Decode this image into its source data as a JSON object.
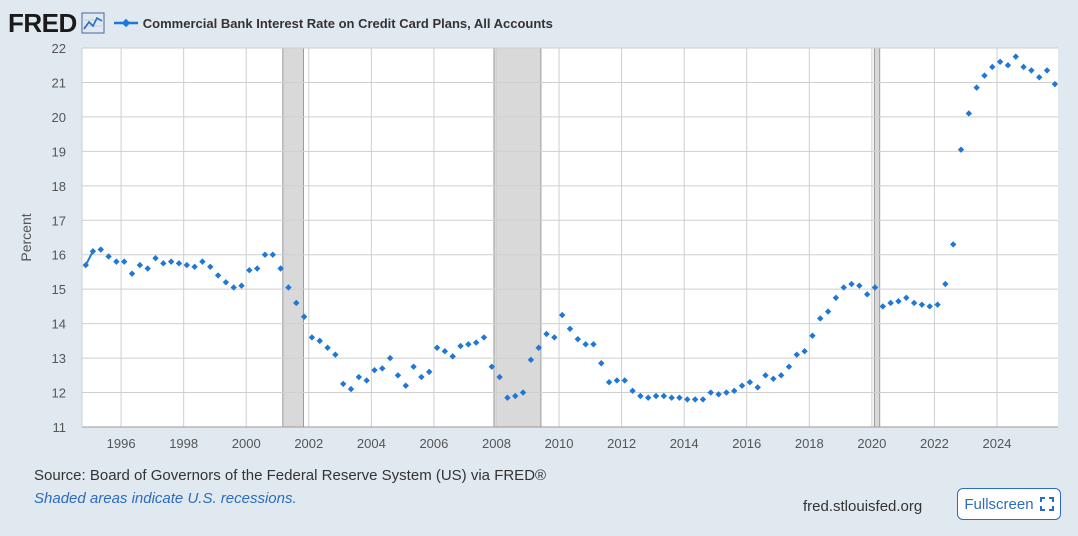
{
  "header": {
    "logo_text": "FRED",
    "series_title": "Commercial Bank Interest Rate on Credit Card Plans, All Accounts"
  },
  "footer": {
    "source": "Source: Board of Governors of the Federal Reserve System (US) via FRED®",
    "recession_note": "Shaded areas indicate U.S. recessions.",
    "site": "fred.stlouisfed.org",
    "fullscreen_label": "Fullscreen"
  },
  "colors": {
    "series": "#1f77d6",
    "recession": "#d9d9d9",
    "grid": "#cfcfcf",
    "accent": "#2b6cc0"
  },
  "chart_data": {
    "type": "scatter",
    "title": "Commercial Bank Interest Rate on Credit Card Plans, All Accounts",
    "xlabel": "",
    "ylabel": "Percent",
    "xlim": [
      1994.75,
      2025.95
    ],
    "ylim": [
      11,
      22
    ],
    "x_ticks": [
      1996,
      1998,
      2000,
      2002,
      2004,
      2006,
      2008,
      2010,
      2012,
      2014,
      2016,
      2018,
      2020,
      2022,
      2024
    ],
    "y_ticks": [
      11,
      12,
      13,
      14,
      15,
      16,
      17,
      18,
      19,
      20,
      21,
      22
    ],
    "grid": true,
    "recessions": [
      [
        2001.17,
        2001.83
      ],
      [
        2007.92,
        2009.42
      ],
      [
        2020.08,
        2020.25
      ]
    ],
    "series": [
      {
        "name": "Commercial Bank Interest Rate on Credit Card Plans, All Accounts",
        "x": [
          1994.87,
          1995.1,
          1995.35,
          1995.6,
          1995.85,
          1996.1,
          1996.35,
          1996.6,
          1996.85,
          1997.1,
          1997.35,
          1997.6,
          1997.85,
          1998.1,
          1998.35,
          1998.6,
          1998.85,
          1999.1,
          1999.35,
          1999.6,
          1999.85,
          2000.1,
          2000.35,
          2000.6,
          2000.85,
          2001.1,
          2001.35,
          2001.6,
          2001.85,
          2002.1,
          2002.35,
          2002.6,
          2002.85,
          2003.1,
          2003.35,
          2003.6,
          2003.85,
          2004.1,
          2004.35,
          2004.6,
          2004.85,
          2005.1,
          2005.35,
          2005.6,
          2005.85,
          2006.1,
          2006.35,
          2006.6,
          2006.85,
          2007.1,
          2007.35,
          2007.6,
          2007.85,
          2008.1,
          2008.35,
          2008.6,
          2008.85,
          2009.1,
          2009.35,
          2009.6,
          2009.85,
          2010.1,
          2010.35,
          2010.6,
          2010.85,
          2011.1,
          2011.35,
          2011.6,
          2011.85,
          2012.1,
          2012.35,
          2012.6,
          2012.85,
          2013.1,
          2013.35,
          2013.6,
          2013.85,
          2014.1,
          2014.35,
          2014.6,
          2014.85,
          2015.1,
          2015.35,
          2015.6,
          2015.85,
          2016.1,
          2016.35,
          2016.6,
          2016.85,
          2017.1,
          2017.35,
          2017.6,
          2017.85,
          2018.1,
          2018.35,
          2018.6,
          2018.85,
          2019.1,
          2019.35,
          2019.6,
          2019.85,
          2020.1,
          2020.35,
          2020.6,
          2020.85,
          2021.1,
          2021.35,
          2021.6,
          2021.85,
          2022.1,
          2022.35,
          2022.6,
          2022.85,
          2023.1,
          2023.35,
          2023.6,
          2023.85,
          2024.1,
          2024.35,
          2024.6,
          2024.85,
          2025.1,
          2025.35,
          2025.6,
          2025.85
        ],
        "values": [
          15.7,
          16.1,
          16.15,
          15.95,
          15.8,
          15.8,
          15.45,
          15.7,
          15.6,
          15.9,
          15.75,
          15.8,
          15.75,
          15.7,
          15.65,
          15.8,
          15.65,
          15.4,
          15.2,
          15.05,
          15.1,
          15.55,
          15.6,
          16.0,
          16.0,
          15.6,
          15.05,
          14.6,
          14.2,
          13.6,
          13.5,
          13.3,
          13.1,
          12.25,
          12.1,
          12.45,
          12.35,
          12.65,
          12.7,
          13.0,
          12.5,
          12.2,
          12.75,
          12.45,
          12.6,
          13.3,
          13.2,
          13.05,
          13.35,
          13.4,
          13.45,
          13.6,
          12.75,
          12.45,
          11.85,
          11.9,
          12.0,
          12.95,
          13.3,
          13.7,
          13.6,
          14.25,
          13.85,
          13.55,
          13.4,
          13.4,
          12.85,
          12.3,
          12.35,
          12.35,
          12.05,
          11.9,
          11.85,
          11.9,
          11.9,
          11.85,
          11.85,
          11.8,
          11.8,
          11.8,
          12.0,
          11.95,
          12.0,
          12.05,
          12.2,
          12.3,
          12.15,
          12.5,
          12.4,
          12.5,
          12.75,
          13.1,
          13.2,
          13.65,
          14.15,
          14.35,
          14.75,
          15.05,
          15.15,
          15.1,
          14.85,
          15.05,
          14.5,
          14.6,
          14.65,
          14.75,
          14.6,
          14.55,
          14.5,
          14.55,
          15.15,
          16.3,
          19.05,
          20.1,
          20.85,
          21.2,
          21.45,
          21.6,
          21.5,
          21.75,
          21.45,
          21.35,
          21.15,
          21.35,
          20.95
        ]
      }
    ]
  }
}
